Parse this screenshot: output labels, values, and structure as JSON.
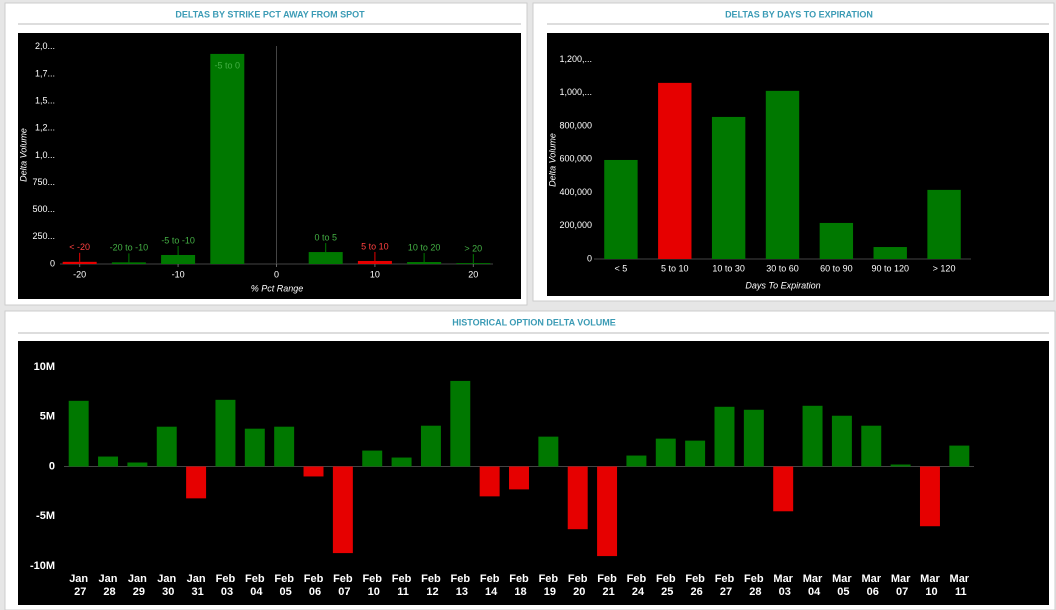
{
  "chart_data": [
    {
      "type": "bar",
      "title": "DELTAS BY STRIKE PCT AWAY FROM SPOT",
      "ylabel": "Delta Volume",
      "xlabel": "% Pct Range",
      "x": [
        -20,
        -15,
        -10,
        -5,
        5,
        10,
        15,
        20
      ],
      "categories": [
        "< -20",
        "-20 to -10",
        "-5 to -10",
        "-5 to 0",
        "0 to 5",
        "5 to 10",
        "10 to 20",
        "> 20"
      ],
      "values": [
        20000,
        15000,
        83000,
        1935000,
        110000,
        28000,
        18000,
        8000
      ],
      "colors": [
        "#e60000",
        "#007800",
        "#007800",
        "#007800",
        "#007800",
        "#e60000",
        "#007800",
        "#007800"
      ],
      "xlim": [
        -22,
        22
      ],
      "xticks": [
        -20,
        -10,
        0,
        10,
        20
      ],
      "ylim": [
        0,
        2100000
      ],
      "yticks": [
        0,
        {
          "value": 250000,
          "label": "250..."
        },
        {
          "value": 500000,
          "label": "500..."
        },
        {
          "value": 750000,
          "label": "750..."
        },
        {
          "value": 1000000,
          "label": "1,0..."
        },
        {
          "value": 1250000,
          "label": "1,2..."
        },
        {
          "value": 1500000,
          "label": "1,5..."
        },
        {
          "value": 1750000,
          "label": "1,7..."
        },
        {
          "value": 2000000,
          "label": "2,0..."
        }
      ]
    },
    {
      "type": "bar",
      "title": "DELTAS BY DAYS TO EXPIRATION",
      "ylabel": "Delta Volume",
      "xlabel": "Days To Expiration",
      "categories": [
        "< 5",
        "5 to 10",
        "10 to 30",
        "30 to 60",
        "60 to 90",
        "90 to 120",
        "> 120"
      ],
      "values": [
        596000,
        1060000,
        855000,
        1012000,
        217000,
        72000,
        416000
      ],
      "colors": [
        "#007800",
        "#e60000",
        "#007800",
        "#007800",
        "#007800",
        "#007800",
        "#007800"
      ],
      "ylim": [
        0,
        1300000
      ],
      "yticks": [
        0,
        {
          "value": 200000,
          "label": "200,000"
        },
        {
          "value": 400000,
          "label": "400,000"
        },
        {
          "value": 600000,
          "label": "600,000"
        },
        {
          "value": 800000,
          "label": "800,000"
        },
        {
          "value": 1000000,
          "label": "1,000,..."
        },
        {
          "value": 1200000,
          "label": "1,200,..."
        }
      ]
    },
    {
      "type": "bar",
      "title": "HISTORICAL OPTION DELTA VOLUME",
      "categories": [
        "Jan 27",
        "Jan 28",
        "Jan 29",
        "Jan 30",
        "Jan 31",
        "Feb 03",
        "Feb 04",
        "Feb 05",
        "Feb 06",
        "Feb 07",
        "Feb 10",
        "Feb 11",
        "Feb 12",
        "Feb 13",
        "Feb 14",
        "Feb 18",
        "Feb 19",
        "Feb 20",
        "Feb 21",
        "Feb 24",
        "Feb 25",
        "Feb 26",
        "Feb 27",
        "Feb 28",
        "Mar 03",
        "Mar 04",
        "Mar 05",
        "Mar 06",
        "Mar 07",
        "Mar 10",
        "Mar 11"
      ],
      "values": [
        6600000,
        1000000,
        400000,
        4000000,
        -3200000,
        6700000,
        3800000,
        4000000,
        -1000000,
        -8700000,
        1600000,
        900000,
        4100000,
        8600000,
        -3000000,
        -2300000,
        3000000,
        -6300000,
        -9000000,
        1100000,
        2800000,
        2600000,
        6000000,
        5700000,
        -4500000,
        6100000,
        5100000,
        4100000,
        200000,
        -6000000,
        2100000
      ],
      "positive_color": "#007800",
      "negative_color": "#e60000",
      "ylim": [
        -10500000,
        10500000
      ],
      "yticks": [
        {
          "value": -10000000,
          "label": "-10M"
        },
        {
          "value": -5000000,
          "label": "-5M"
        },
        0,
        {
          "value": 5000000,
          "label": "5M"
        },
        {
          "value": 10000000,
          "label": "10M"
        }
      ]
    }
  ]
}
